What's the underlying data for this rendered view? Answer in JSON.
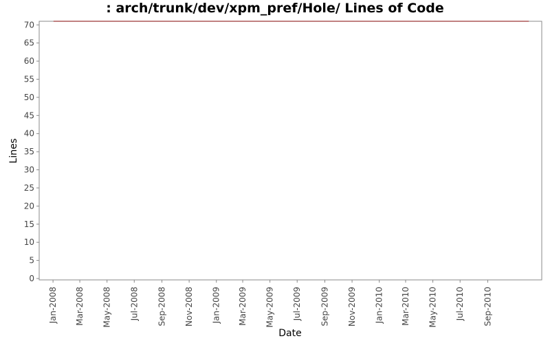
{
  "chart_data": {
    "type": "line",
    "title": ": arch/trunk/dev/xpm_pref/Hole/ Lines of Code",
    "xlabel": "Date",
    "ylabel": "Lines",
    "x_ticks": [
      "Jan-2008",
      "Mar-2008",
      "May-2008",
      "Jul-2008",
      "Sep-2008",
      "Nov-2008",
      "Jan-2009",
      "Mar-2009",
      "May-2009",
      "Jul-2009",
      "Sep-2009",
      "Nov-2009",
      "Jan-2010",
      "Mar-2010",
      "May-2010",
      "Jul-2010",
      "Sep-2010"
    ],
    "x_range": [
      "2007-12-01",
      "2010-12-31"
    ],
    "y_ticks": [
      0,
      5,
      10,
      15,
      20,
      25,
      30,
      35,
      40,
      45,
      50,
      55,
      60,
      65,
      70
    ],
    "ylim": [
      0,
      71
    ],
    "grid": false,
    "series": [
      {
        "color": "#800000",
        "points": [
          {
            "x": "2008-01-02",
            "y": 71
          },
          {
            "x": "2010-12-02",
            "y": 71
          }
        ]
      }
    ]
  }
}
